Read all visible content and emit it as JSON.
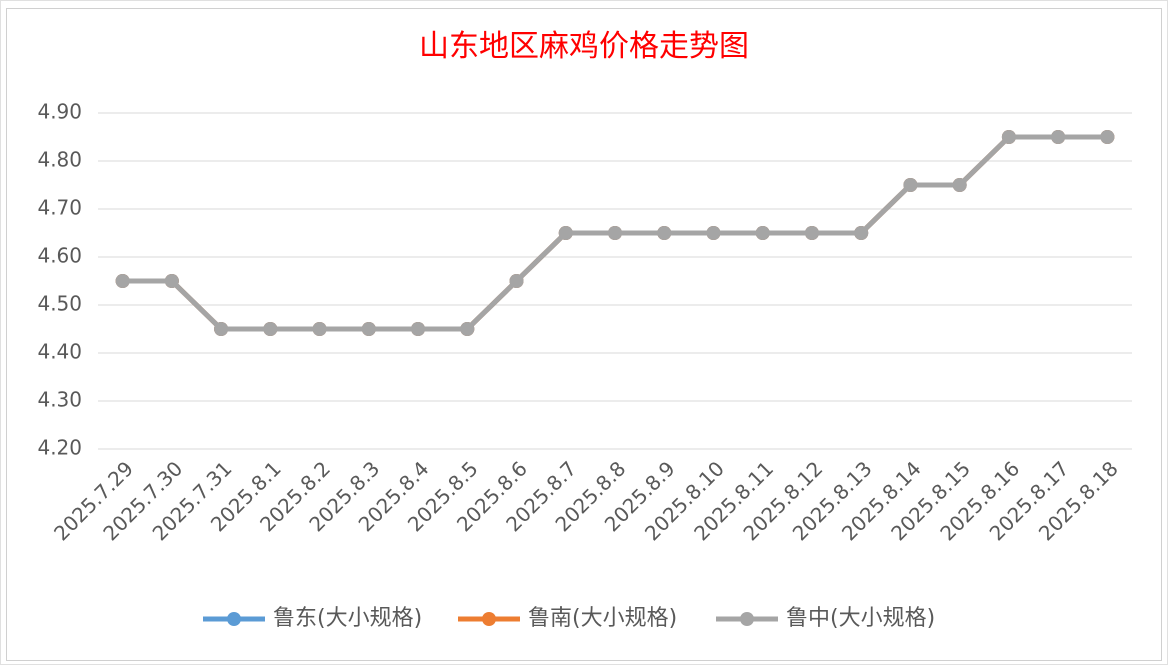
{
  "chart_data": {
    "type": "line",
    "title": "山东地区麻鸡价格走势图",
    "categories": [
      "2025.7.29",
      "2025.7.30",
      "2025.7.31",
      "2025.8.1",
      "2025.8.2",
      "2025.8.3",
      "2025.8.4",
      "2025.8.5",
      "2025.8.6",
      "2025.8.7",
      "2025.8.8",
      "2025.8.9",
      "2025.8.10",
      "2025.8.11",
      "2025.8.12",
      "2025.8.13",
      "2025.8.14",
      "2025.8.15",
      "2025.8.16",
      "2025.8.17",
      "2025.8.18"
    ],
    "series": [
      {
        "name": "鲁东(大小规格)",
        "color": "#5b9bd5",
        "values": [
          4.55,
          4.55,
          4.45,
          4.45,
          4.45,
          4.45,
          4.45,
          4.45,
          4.55,
          4.65,
          4.65,
          4.65,
          4.65,
          4.65,
          4.65,
          4.65,
          4.75,
          4.75,
          4.85,
          4.85,
          4.85
        ]
      },
      {
        "name": "鲁南(大小规格)",
        "color": "#ed7d31",
        "values": [
          4.55,
          4.55,
          4.45,
          4.45,
          4.45,
          4.45,
          4.45,
          4.45,
          4.55,
          4.65,
          4.65,
          4.65,
          4.65,
          4.65,
          4.65,
          4.65,
          4.75,
          4.75,
          4.85,
          4.85,
          4.85
        ]
      },
      {
        "name": "鲁中(大小规格)",
        "color": "#a5a5a5",
        "values": [
          4.55,
          4.55,
          4.45,
          4.45,
          4.45,
          4.45,
          4.45,
          4.45,
          4.55,
          4.65,
          4.65,
          4.65,
          4.65,
          4.65,
          4.65,
          4.65,
          4.75,
          4.75,
          4.85,
          4.85,
          4.85
        ]
      }
    ],
    "ylim": [
      4.2,
      4.9
    ],
    "yticks": [
      {
        "value": 4.2,
        "label": "4.20"
      },
      {
        "value": 4.3,
        "label": "4.30"
      },
      {
        "value": 4.4,
        "label": "4.40"
      },
      {
        "value": 4.5,
        "label": "4.50"
      },
      {
        "value": 4.6,
        "label": "4.60"
      },
      {
        "value": 4.7,
        "label": "4.70"
      },
      {
        "value": 4.8,
        "label": "4.80"
      },
      {
        "value": 4.9,
        "label": "4.90"
      }
    ],
    "grid": true,
    "legend": "bottom"
  }
}
